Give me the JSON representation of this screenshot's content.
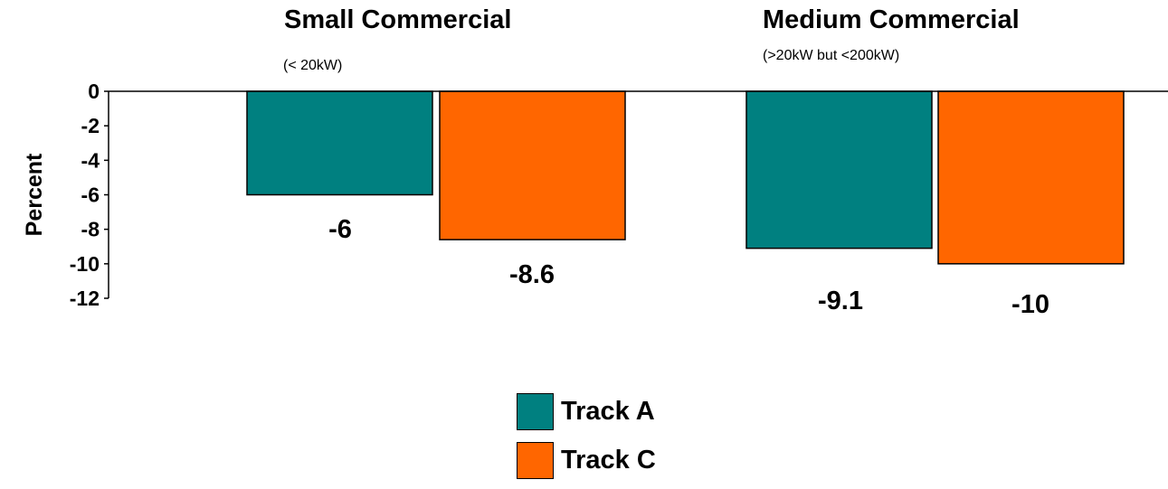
{
  "chart_data": {
    "type": "bar",
    "categories": [
      "Small Commercial",
      "Medium Commercial"
    ],
    "category_subtitles": [
      "(< 20kW)",
      "(>20kW but <200kW)"
    ],
    "series": [
      {
        "name": "Track A",
        "values": [
          -6,
          -9.1
        ],
        "color": "#008080"
      },
      {
        "name": "Track C",
        "values": [
          -8.6,
          -10
        ],
        "color": "#FF6600"
      }
    ],
    "ylabel": "Percent",
    "ylim": [
      -12,
      0
    ],
    "yticks": [
      0,
      -2,
      -4,
      -6,
      -8,
      -10,
      -12
    ],
    "data_labels": [
      "-6",
      "-8.6",
      "-9.1",
      "-10"
    ],
    "legend_position": "bottom-center",
    "grid": false
  }
}
